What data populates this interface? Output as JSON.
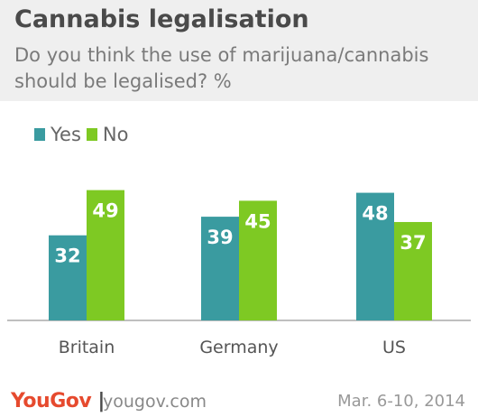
{
  "header": {
    "title": "Cannabis legalisation",
    "subtitle": "Do you think the use of marijuana/cannabis should be legalised? %"
  },
  "chart_data": {
    "type": "bar",
    "categories": [
      "Britain",
      "Germany",
      "US"
    ],
    "series": [
      {
        "name": "Yes",
        "values": [
          32,
          39,
          48
        ],
        "color": "#3a9ba0"
      },
      {
        "name": "No",
        "values": [
          49,
          45,
          37
        ],
        "color": "#7ec923"
      }
    ],
    "title": "Cannabis legalisation",
    "subtitle": "Do you think the use of marijuana/cannabis should be legalised? %",
    "xlabel": "",
    "ylabel": "",
    "ylim": [
      0,
      56
    ],
    "grid": false,
    "legend": "top-left",
    "data_labels": true
  },
  "footer": {
    "brand": "YouGov",
    "website": "yougov.com",
    "date": "Mar. 6-10, 2014"
  }
}
